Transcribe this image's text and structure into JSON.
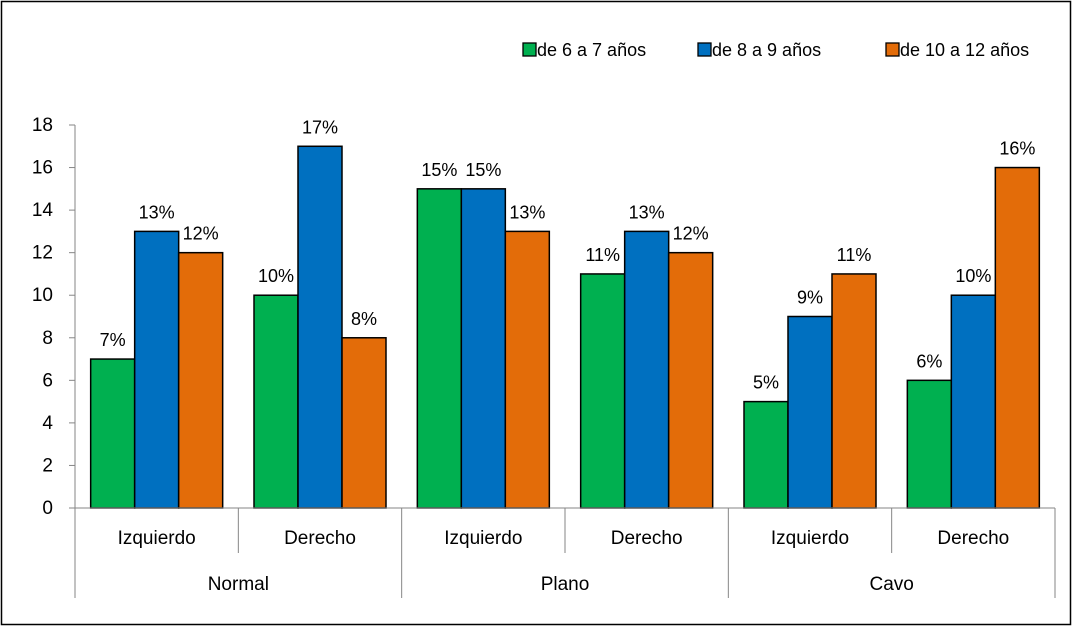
{
  "chart_data": {
    "type": "bar",
    "title": "",
    "xlabel": "",
    "ylabel": "",
    "ylim": [
      0,
      18
    ],
    "yticks": [
      0,
      2,
      4,
      6,
      8,
      10,
      12,
      14,
      16,
      18
    ],
    "grid": false,
    "legend_position": "top-right",
    "groups": [
      {
        "label": "Normal",
        "categories": [
          "Izquierdo",
          "Derecho"
        ]
      },
      {
        "label": "Plano",
        "categories": [
          "Izquierdo",
          "Derecho"
        ]
      },
      {
        "label": "Cavo",
        "categories": [
          "Izquierdo",
          "Derecho"
        ]
      }
    ],
    "categories": [
      "Izquierdo",
      "Derecho",
      "Izquierdo",
      "Derecho",
      "Izquierdo",
      "Derecho"
    ],
    "series": [
      {
        "name": "de 6 a 7 años",
        "color": "#00b050",
        "values": [
          7,
          10,
          15,
          11,
          5,
          6
        ],
        "labels": [
          "7%",
          "10%",
          "15%",
          "11%",
          "5%",
          "6%"
        ]
      },
      {
        "name": "de 8 a 9 años",
        "color": "#0070c0",
        "values": [
          13,
          17,
          15,
          13,
          9,
          10
        ],
        "labels": [
          "13%",
          "17%",
          "15%",
          "13%",
          "9%",
          "10%"
        ]
      },
      {
        "name": "de 10 a 12 años",
        "color": "#e36c09",
        "values": [
          12,
          8,
          13,
          12,
          11,
          16
        ],
        "labels": [
          "12%",
          "8%",
          "13%",
          "12%",
          "11%",
          "16%"
        ]
      }
    ]
  }
}
